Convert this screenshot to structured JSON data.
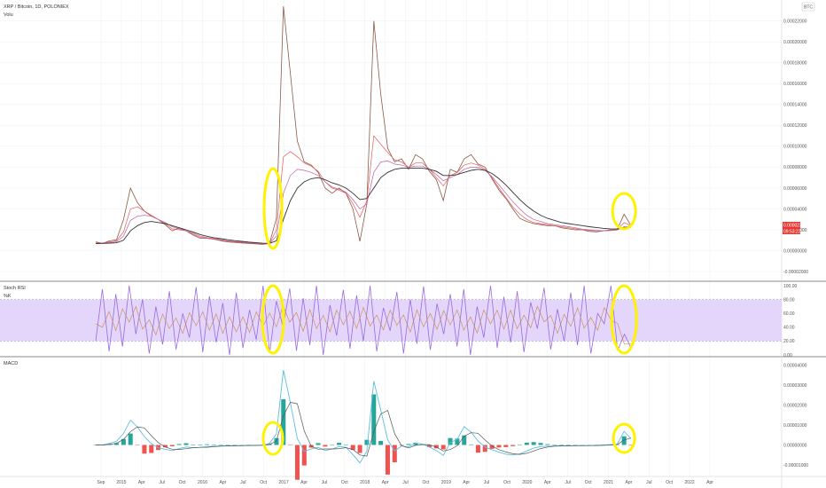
{
  "header": {
    "title": "XRP / Bitcoin, 1D, POLONIEX",
    "indicator": "Volu",
    "currency": "BTC"
  },
  "colors": {
    "background": "#ffffff",
    "grid": "#eceff2",
    "price": "#8a5a44",
    "ema_fast": "#e85a5a",
    "ema_mid": "#c060a0",
    "ema_slow": "#7a5fb0",
    "sma": "#333333",
    "stoch_band": "#e3d6fa",
    "stoch_k": "#9a6adf",
    "stoch_d": "#c8884a",
    "macd_line": "#5bbfe0",
    "signal_line": "#555555",
    "hist_pos": "#26a69a",
    "hist_neg": "#ef5350",
    "highlight": "#fff200",
    "price_label": "#e53935"
  },
  "chart_data": [
    {
      "type": "line",
      "title": "XRP / Bitcoin, 1D, POLONIEX",
      "xlabel": "",
      "ylabel": "",
      "x_ticks": [
        "Sep",
        "2015",
        "Apr",
        "Jul",
        "Oct",
        "2016",
        "Apr",
        "Jul",
        "Oct",
        "2017",
        "Apr",
        "Jul",
        "Oct",
        "2018",
        "Apr",
        "Jul",
        "Oct",
        "2019",
        "Apr",
        "Jul",
        "Oct",
        "2020",
        "Apr",
        "Jul",
        "Oct",
        "2021",
        "Apr",
        "Jul",
        "Oct",
        "2022",
        "Apr"
      ],
      "y_ticks": [
        "0.00022000",
        "0.00020000",
        "0.00018000",
        "0.00016000",
        "0.00014000",
        "0.00012000",
        "0.00010000",
        "0.00008000",
        "0.00006000",
        "0.00004000",
        "0.00002000",
        "0.00000000",
        "-0.00002000"
      ],
      "ylim": [
        -2.5e-05,
        0.000235
      ],
      "last_price": "0.00002383",
      "last_price_sub": "09:53:22",
      "series": [
        {
          "values": [
            8.5e-06,
            7e-06,
            9.5e-06,
            1.05e-05,
            3e-05,
            6e-05,
            4.6e-05,
            3.8e-05,
            3.3e-05,
            3e-05,
            2.5e-05,
            1.9e-05,
            2.2e-05,
            1.9e-05,
            1.5e-05,
            1.2e-05,
            1.2e-05,
            1.1e-05,
            9.5e-06,
            8.5e-06,
            8e-06,
            7.5e-06,
            7e-06,
            6.5e-06,
            6e-06,
            7e-06,
            3.1e-05,
            0.000234,
            0.00017,
            0.000105,
            8.5e-05,
            8.2e-05,
            7.5e-05,
            6e-05,
            5.5e-05,
            6e-05,
            5.5e-05,
            4e-05,
            9e-06,
            4.5e-05,
            0.00022,
            0.00015,
            9.8e-05,
            8.5e-05,
            8.8e-05,
            7.8e-05,
            9.2e-05,
            8.8e-05,
            7.6e-05,
            6.8e-05,
            4.8e-05,
            7.8e-05,
            7.5e-05,
            8.8e-05,
            9.2e-05,
            8.3e-05,
            8e-05,
            6.9e-05,
            5.8e-05,
            5e-05,
            4e-05,
            3.1e-05,
            2.8e-05,
            2.6e-05,
            2.5e-05,
            2.4e-05,
            2.4e-05,
            2.2e-05,
            2.1e-05,
            2e-05,
            2e-05,
            1.85e-05,
            1.8e-05,
            1.9e-05,
            2e-05,
            2e-05,
            3.5e-05,
            2.4e-05
          ]
        },
        {
          "values": [
            7.5e-06,
            7.5e-06,
            8.5e-06,
            9.5e-06,
            1.8e-05,
            4e-05,
            4.2e-05,
            3.8e-05,
            3.4e-05,
            3e-05,
            2.6e-05,
            2.1e-05,
            2e-05,
            1.9e-05,
            1.6e-05,
            1.3e-05,
            1.2e-05,
            1.1e-05,
            1e-05,
            9e-06,
            8.5e-06,
            8e-06,
            7.5e-06,
            7e-06,
            6.5e-06,
            6.8e-06,
            2e-05,
            9e-05,
            9.5e-05,
            9e-05,
            8.4e-05,
            8.1e-05,
            7.6e-05,
            6.6e-05,
            6e-05,
            5.8e-05,
            5.5e-05,
            4.5e-05,
            3.2e-05,
            4.8e-05,
            0.00011,
            0.000102,
            9.4e-05,
            8.7e-05,
            8.5e-05,
            8e-05,
            8.4e-05,
            8.4e-05,
            7.8e-05,
            7e-05,
            6.2e-05,
            7.2e-05,
            7.5e-05,
            8.2e-05,
            8.4e-05,
            8.2e-05,
            7.8e-05,
            7e-05,
            6e-05,
            5.1e-05,
            4.2e-05,
            3.5e-05,
            3e-05,
            2.7e-05,
            2.6e-05,
            2.5e-05,
            2.4e-05,
            2.3e-05,
            2.2e-05,
            2.1e-05,
            2e-05,
            1.95e-05,
            1.9e-05,
            1.9e-05,
            1.95e-05,
            2e-05,
            2.7e-05,
            2.4e-05
          ]
        },
        {
          "values": [
            7e-06,
            7.2e-06,
            7.8e-06,
            8.5e-06,
            1.4e-05,
            2.9e-05,
            3.3e-05,
            3.4e-05,
            3.3e-05,
            3e-05,
            2.7e-05,
            2.3e-05,
            2.1e-05,
            1.9e-05,
            1.7e-05,
            1.4e-05,
            1.25e-05,
            1.15e-05,
            1.05e-05,
            9.5e-06,
            8.8e-06,
            8.2e-06,
            7.8e-06,
            7.3e-06,
            6.8e-06,
            6.8e-06,
            1.4e-05,
            5.5e-05,
            7.2e-05,
            7.8e-05,
            7.7e-05,
            7.5e-05,
            7.2e-05,
            6.6e-05,
            6.1e-05,
            5.9e-05,
            5.6e-05,
            4.9e-05,
            4e-05,
            4.5e-05,
            7.5e-05,
            8.5e-05,
            8.6e-05,
            8.3e-05,
            8.2e-05,
            8e-05,
            8.1e-05,
            8.1e-05,
            7.8e-05,
            7.3e-05,
            6.7e-05,
            7e-05,
            7.3e-05,
            7.8e-05,
            8e-05,
            8e-05,
            7.7e-05,
            7.1e-05,
            6.3e-05,
            5.5e-05,
            4.7e-05,
            4e-05,
            3.4e-05,
            3e-05,
            2.8e-05,
            2.6e-05,
            2.5e-05,
            2.4e-05,
            2.3e-05,
            2.2e-05,
            2.05e-05,
            2e-05,
            1.95e-05,
            1.9e-05,
            1.93e-05,
            1.98e-05,
            2.3e-05,
            2.3e-05
          ]
        },
        {
          "values": [
            6.8e-06,
            7e-06,
            7.2e-06,
            7.6e-06,
            1e-05,
            1.9e-05,
            2.4e-05,
            2.7e-05,
            2.8e-05,
            2.7e-05,
            2.6e-05,
            2.4e-05,
            2.2e-05,
            2e-05,
            1.8e-05,
            1.55e-05,
            1.38e-05,
            1.25e-05,
            1.15e-05,
            1.05e-05,
            9.7e-06,
            9e-06,
            8.3e-06,
            7.8e-06,
            7.2e-06,
            7e-06,
            9.5e-06,
            3e-05,
            4.8e-05,
            6e-05,
            6.6e-05,
            6.9e-05,
            7e-05,
            6.8e-05,
            6.5e-05,
            6.3e-05,
            6e-05,
            5.5e-05,
            4.9e-05,
            5e-05,
            6e-05,
            7e-05,
            7.5e-05,
            7.8e-05,
            7.9e-05,
            7.9e-05,
            7.9e-05,
            7.9e-05,
            7.8e-05,
            7.6e-05,
            7.2e-05,
            7.2e-05,
            7.3e-05,
            7.5e-05,
            7.7e-05,
            7.8e-05,
            7.7e-05,
            7.4e-05,
            6.9e-05,
            6.3e-05,
            5.6e-05,
            4.9e-05,
            4.3e-05,
            3.8e-05,
            3.4e-05,
            3.1e-05,
            2.9e-05,
            2.7e-05,
            2.6e-05,
            2.5e-05,
            2.4e-05,
            2.3e-05,
            2.22e-05,
            2.15e-05,
            2.1e-05,
            2.08e-05,
            2.2e-05,
            2.25e-05
          ]
        }
      ],
      "highlights": [
        {
          "x_index": 25.5,
          "label": ""
        },
        {
          "x_index": 76,
          "label": ""
        }
      ]
    },
    {
      "type": "line",
      "title": "Stoch RSI",
      "legend": [
        "Stoch RSI",
        "%K"
      ],
      "y_ticks": [
        "100.00",
        "80.00",
        "60.00",
        "40.00",
        "20.00",
        "0.00"
      ],
      "ylim": [
        0,
        100
      ],
      "band": [
        20,
        80
      ],
      "series": [
        {
          "values": [
            20,
            95,
            5,
            88,
            12,
            100,
            30,
            80,
            2,
            70,
            15,
            92,
            8,
            60,
            25,
            98,
            4,
            85,
            18,
            75,
            0,
            90,
            10,
            65,
            22,
            100,
            3,
            78,
            40,
            96,
            6,
            82,
            14,
            100,
            0,
            72,
            28,
            94,
            9,
            86,
            20,
            100,
            5,
            68,
            35,
            91,
            2,
            80,
            16,
            99,
            7,
            74,
            30,
            88,
            12,
            95,
            0,
            70,
            25,
            100,
            10,
            84,
            18,
            92,
            4,
            76,
            38,
            97,
            8,
            66,
            20,
            90,
            14,
            100,
            2,
            60,
            45,
            100,
            6,
            30,
            10
          ]
        }
      ]
    },
    {
      "type": "line",
      "title": "MACD",
      "y_ticks": [
        "0.00004000",
        "0.00003000",
        "0.00002000",
        "0.00001000",
        "0.00000000",
        "-0.00001000"
      ],
      "ylim": [
        -1.4e-05,
        4.2e-05
      ],
      "series": [
        {
          "values": [
            0,
            0,
            8e-07,
            1.8e-06,
            5.8e-06,
            1.24e-05,
            9e-06,
            4.2e-06,
            6e-07,
            -1.4e-06,
            -2.2e-06,
            -2.8e-06,
            -1.8e-06,
            -1e-06,
            -1.4e-06,
            -1.2e-06,
            -8e-07,
            -6e-07,
            -5e-07,
            -4e-07,
            -3e-07,
            -3e-07,
            -2e-07,
            -2e-07,
            -1e-07,
            8e-07,
            5.5e-06,
            3.75e-05,
            2.12e-05,
            3.2e-06,
            -3.2e-06,
            -2e-06,
            -1.2e-06,
            -2.8e-06,
            -2e-06,
            -8e-07,
            -1.2e-06,
            -4.8e-06,
            -9e-06,
            -3e-06,
            3.2e-05,
            1.75e-05,
            2.5e-06,
            -3e-06,
            -5e-07,
            -1e-06,
            1e-06,
            5e-07,
            -1e-06,
            -2.8e-06,
            -5.2e-06,
            1.2e-06,
            2.8e-06,
            9.2e-06,
            6.4e-06,
            2e-06,
            -1e-06,
            -2.4e-06,
            -3.6e-06,
            -4.6e-06,
            -5e-06,
            -4.5e-06,
            -3e-06,
            -1.6e-06,
            -8e-07,
            -6e-07,
            -5e-07,
            -4e-07,
            -4e-07,
            -3e-07,
            -3e-07,
            -3e-07,
            -2e-07,
            -1e-07,
            2e-07,
            4e-07,
            6.8e-06,
            3.2e-06
          ]
        }
      ]
    }
  ]
}
